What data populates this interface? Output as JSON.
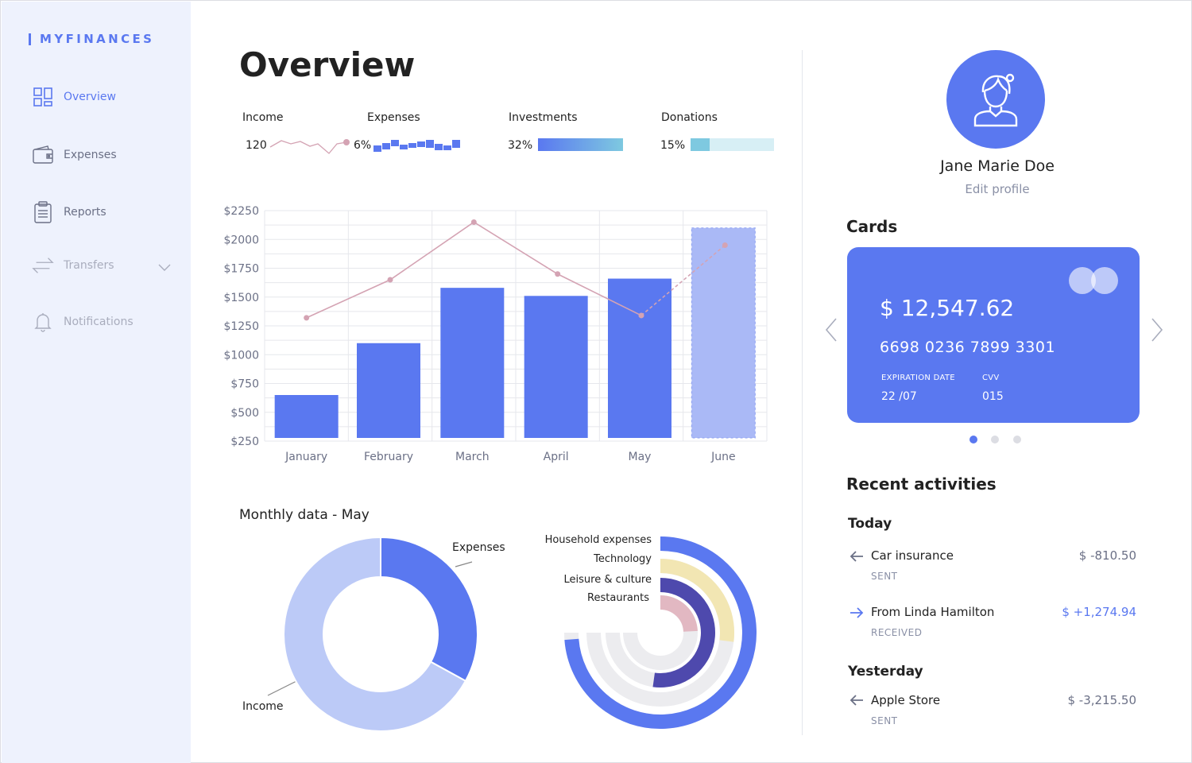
{
  "brand": "MYFINANCES",
  "sidebar": {
    "items": [
      {
        "label": "Overview"
      },
      {
        "label": "Expenses"
      },
      {
        "label": "Reports"
      },
      {
        "label": "Transfers"
      },
      {
        "label": "Notifications"
      }
    ]
  },
  "page_title": "Overview",
  "stats": {
    "income": {
      "label": "Income",
      "value": "120"
    },
    "expenses": {
      "label": "Expenses",
      "value": "6%"
    },
    "investments": {
      "label": "Investments",
      "value": "32%",
      "fraction": 0.32
    },
    "donations": {
      "label": "Donations",
      "value": "15%",
      "fraction": 0.15
    }
  },
  "chart_data": [
    {
      "type": "bar",
      "categories": [
        "January",
        "February",
        "March",
        "April",
        "May",
        "June"
      ],
      "series": [
        {
          "values": [
            650,
            1100,
            1580,
            1510,
            1660,
            2100
          ]
        },
        {
          "type": "line",
          "values": [
            1320,
            1650,
            2150,
            1700,
            1340,
            1950
          ]
        }
      ],
      "ylim": [
        250,
        2250
      ],
      "yticks": [
        "$2250",
        "$2000",
        "$1750",
        "$1500",
        "$1250",
        "$1000",
        "$750",
        "$500",
        "$250"
      ],
      "grid": true
    },
    {
      "type": "pie",
      "title": "Monthly data - May",
      "labels": [
        "Expenses",
        "Income"
      ],
      "values": [
        33,
        67
      ],
      "colors": [
        "#5a78f0",
        "#bccaf7"
      ]
    },
    {
      "type": "pie",
      "labels": [
        "Household expenses",
        "Technology",
        "Leisure & culture",
        "Restaurants"
      ],
      "values": [
        82,
        30,
        58,
        27
      ],
      "colors": [
        "#5a78f0",
        "#f2e6b3",
        "#4e49ad",
        "#e2b8c2"
      ]
    }
  ],
  "monthly_title": "Monthly data - May",
  "donut_labels": {
    "expenses": "Expenses",
    "income": "Income"
  },
  "radial_labels": [
    "Household expenses",
    "Technology",
    "Leisure & culture",
    "Restaurants"
  ],
  "profile": {
    "name": "Jane Marie Doe",
    "edit": "Edit profile"
  },
  "cards": {
    "title": "Cards",
    "balance": "$ 12,547.62",
    "number": "6698 0236 7899 3301",
    "expiration_label": "EXPIRATION DATE",
    "expiration": "22 /07",
    "cvv_label": "CVV",
    "cvv": "015"
  },
  "recent": {
    "title": "Recent activities",
    "today": "Today",
    "yesterday": "Yesterday",
    "items": [
      {
        "name": "Car insurance",
        "status": "SENT",
        "amount": "$ -810.50"
      },
      {
        "name": "From Linda Hamilton",
        "status": "RECEIVED",
        "amount": "$ +1,274.94"
      },
      {
        "name": "Apple Store",
        "status": "SENT",
        "amount": "$ -3,215.50"
      }
    ]
  },
  "colors": {
    "accent": "#5a78f0",
    "sidebar_bg": "#eef2fd",
    "line": "#d4a3b3"
  }
}
